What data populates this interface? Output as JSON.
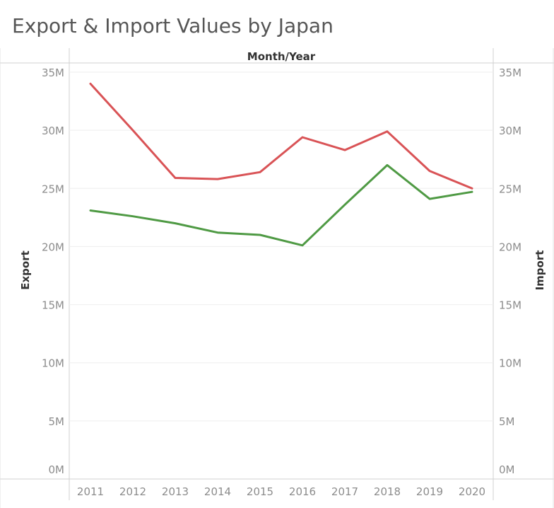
{
  "chart_data": {
    "type": "line",
    "title": "Export & Import Values by Japan",
    "column_header": "Month/Year",
    "x": [
      "2011",
      "2012",
      "2013",
      "2014",
      "2015",
      "2016",
      "2017",
      "2018",
      "2019",
      "2020"
    ],
    "y_left_label": "Export",
    "y_right_label": "Import",
    "ylim": [
      0,
      35000000
    ],
    "y_ticks": [
      {
        "value": 0,
        "label": "0M"
      },
      {
        "value": 5000000,
        "label": "5M"
      },
      {
        "value": 10000000,
        "label": "10M"
      },
      {
        "value": 15000000,
        "label": "15M"
      },
      {
        "value": 20000000,
        "label": "20M"
      },
      {
        "value": 25000000,
        "label": "25M"
      },
      {
        "value": 30000000,
        "label": "30M"
      },
      {
        "value": 35000000,
        "label": "35M"
      }
    ],
    "grid": true,
    "series": [
      {
        "color": "#d95356",
        "values": [
          34000000,
          30000000,
          25900000,
          25800000,
          26400000,
          29400000,
          28300000,
          29900000,
          26500000,
          25000000
        ]
      },
      {
        "color": "#4f9a44",
        "values": [
          23100000,
          22600000,
          22000000,
          21200000,
          21000000,
          20100000,
          23600000,
          27000000,
          24100000,
          24700000
        ]
      }
    ]
  }
}
